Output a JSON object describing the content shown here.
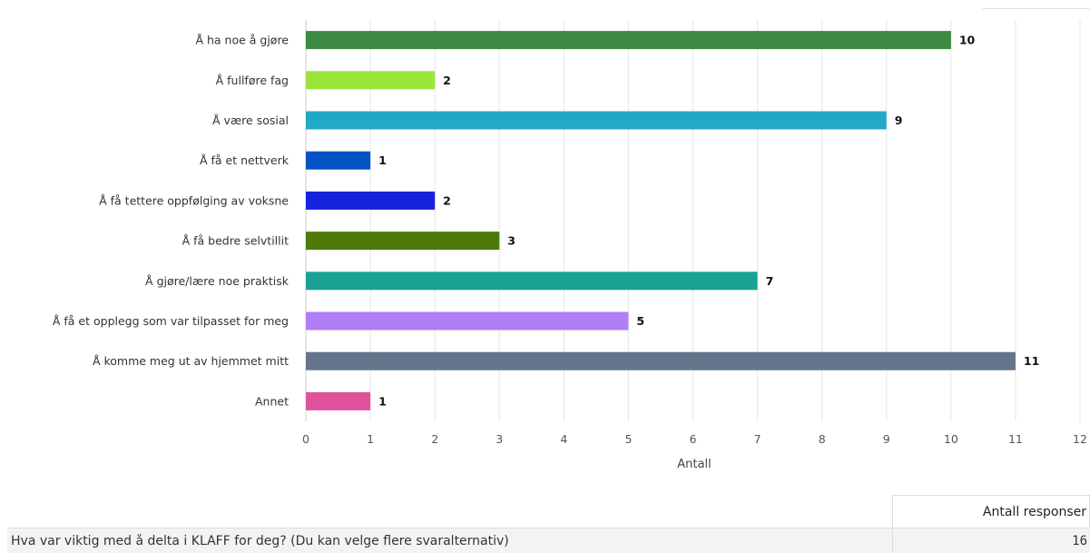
{
  "chart_data": {
    "type": "bar",
    "orientation": "horizontal",
    "categories": [
      "Å ha noe å gjøre",
      "Å fullføre fag",
      "Å være sosial",
      "Å få et nettverk",
      "Å få tettere oppfølging av voksne",
      "Å få bedre selvtillit",
      "Å gjøre/lære noe praktisk",
      "Å få et opplegg som var tilpasset for meg",
      "Å komme meg ut av hjemmet mitt",
      "Annet"
    ],
    "values": [
      10,
      2,
      9,
      1,
      2,
      3,
      7,
      5,
      11,
      1
    ],
    "colors": [
      "#3d8a42",
      "#9be53a",
      "#23a9c8",
      "#0553c4",
      "#1523dc",
      "#4e7a0a",
      "#19a193",
      "#b07ef5",
      "#64748b",
      "#e0529c"
    ],
    "xlabel": "Antall",
    "xlim": [
      0,
      12
    ],
    "xticks": [
      "0",
      "1",
      "2",
      "3",
      "4",
      "5",
      "6",
      "7",
      "8",
      "9",
      "10",
      "11",
      "12"
    ],
    "grid": true,
    "legend": "none"
  },
  "summary": {
    "header": "Antall responser",
    "question": "Hva var viktig med å delta i KLAFF for deg? (Du kan velge flere svaralternativ)",
    "count": "16"
  }
}
